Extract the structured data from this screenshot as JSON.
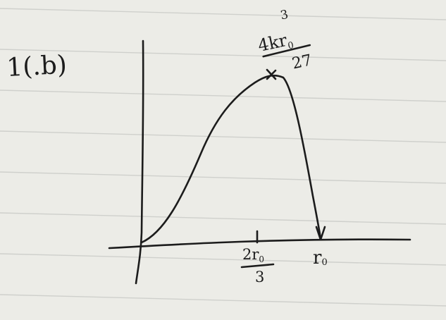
{
  "problem_label": "1(.b)",
  "peak_label": {
    "numerator": "4kr",
    "subscript": "0",
    "exponent": "3",
    "denominator": "27"
  },
  "x_tick_label": {
    "numerator": "2r",
    "subscript": "0",
    "denominator": "3"
  },
  "x_end_label": {
    "text": "r",
    "subscript": "0"
  }
}
